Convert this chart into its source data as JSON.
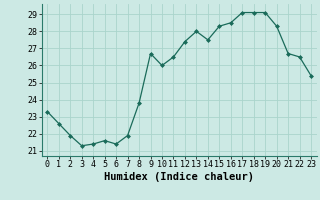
{
  "x": [
    0,
    1,
    2,
    3,
    4,
    5,
    6,
    7,
    8,
    9,
    10,
    11,
    12,
    13,
    14,
    15,
    16,
    17,
    18,
    19,
    20,
    21,
    22,
    23
  ],
  "y": [
    23.3,
    22.6,
    21.9,
    21.3,
    21.4,
    21.6,
    21.4,
    21.9,
    23.8,
    26.7,
    26.0,
    26.5,
    27.4,
    28.0,
    27.5,
    28.3,
    28.5,
    29.1,
    29.1,
    29.1,
    28.3,
    26.7,
    26.5,
    25.4
  ],
  "line_color": "#1a6b5a",
  "marker": "D",
  "marker_size": 2.0,
  "bg_color": "#cce9e4",
  "grid_color": "#aad4cc",
  "xlabel": "Humidex (Indice chaleur)",
  "xlabel_fontsize": 7.5,
  "tick_fontsize": 6.0,
  "xlim": [
    -0.5,
    23.5
  ],
  "ylim": [
    20.7,
    29.6
  ],
  "yticks": [
    21,
    22,
    23,
    24,
    25,
    26,
    27,
    28,
    29
  ],
  "xticks": [
    0,
    1,
    2,
    3,
    4,
    5,
    6,
    7,
    8,
    9,
    10,
    11,
    12,
    13,
    14,
    15,
    16,
    17,
    18,
    19,
    20,
    21,
    22,
    23
  ]
}
